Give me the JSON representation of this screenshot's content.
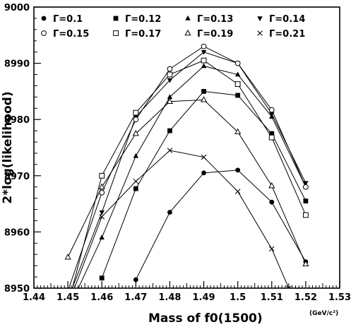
{
  "chart_data": {
    "type": "line",
    "xlabel": "Mass of f0(1500)",
    "xunit": "(GeV/c²)",
    "ylabel": "2*log(likelihood)",
    "xlim": [
      1.44,
      1.53
    ],
    "ylim": [
      8950,
      9000
    ],
    "x_ticks": [
      "1.44",
      "1.45",
      "1.46",
      "1.47",
      "1.48",
      "1.49",
      "1.5",
      "1.51",
      "1.52",
      "1.53"
    ],
    "y_ticks": [
      "8950",
      "8960",
      "8970",
      "8980",
      "8990",
      "9000"
    ],
    "grid": false,
    "legend_position": "top",
    "series": [
      {
        "name": "Γ=0.1",
        "marker": "filled-circle",
        "x": [
          1.47,
          1.48,
          1.49,
          1.5,
          1.51,
          1.52
        ],
        "y": [
          8951.5,
          8963.5,
          8970.5,
          8971.0,
          8965.3,
          8954.7
        ]
      },
      {
        "name": "Γ=0.12",
        "marker": "filled-square",
        "x": [
          1.46,
          1.47,
          1.48,
          1.49,
          1.5,
          1.51,
          1.52
        ],
        "y": [
          8951.8,
          8967.7,
          8978.0,
          8985.0,
          8984.3,
          8977.5,
          8965.5
        ]
      },
      {
        "name": "Γ=0.13",
        "marker": "filled-triangle-up",
        "x": [
          1.45,
          1.46,
          1.47,
          1.48,
          1.49,
          1.5,
          1.51,
          1.52
        ],
        "y": [
          8946.0,
          8959.0,
          8973.5,
          8984.0,
          8989.5,
          8988.0,
          8980.5,
          8968.0
        ]
      },
      {
        "name": "Γ=0.14",
        "marker": "filled-triangle-down",
        "x": [
          1.45,
          1.46,
          1.47,
          1.48,
          1.49,
          1.5,
          1.51,
          1.52
        ],
        "y": [
          8948.0,
          8963.5,
          8980.5,
          8987.0,
          8992.0,
          8990.0,
          8981.0,
          8968.7
        ]
      },
      {
        "name": "Γ=0.15",
        "marker": "open-circle",
        "x": [
          1.45,
          1.46,
          1.47,
          1.48,
          1.49,
          1.5,
          1.51,
          1.52
        ],
        "y": [
          8949.5,
          8967.0,
          8980.0,
          8989.0,
          8993.0,
          8990.0,
          8981.7,
          8968.0
        ]
      },
      {
        "name": "Γ=0.17",
        "marker": "open-square",
        "x": [
          1.45,
          1.46,
          1.47,
          1.48,
          1.49,
          1.5,
          1.51,
          1.52
        ],
        "y": [
          8947.0,
          8970.0,
          8981.2,
          8988.0,
          8990.5,
          8986.3,
          8976.8,
          8963.0
        ]
      },
      {
        "name": "Γ=0.19",
        "marker": "open-triangle-up",
        "x": [
          1.45,
          1.46,
          1.47,
          1.48,
          1.49,
          1.5,
          1.51,
          1.52
        ],
        "y": [
          8955.5,
          8968.0,
          8977.5,
          8983.2,
          8983.5,
          8977.8,
          8968.2,
          8954.3
        ]
      },
      {
        "name": "Γ=0.21",
        "marker": "cross",
        "x": [
          1.45,
          1.46,
          1.47,
          1.48,
          1.49,
          1.5,
          1.51,
          1.515
        ],
        "y": [
          8947.0,
          8962.7,
          8969.0,
          8974.5,
          8973.3,
          8967.2,
          8957.0,
          8950.0
        ]
      }
    ]
  }
}
